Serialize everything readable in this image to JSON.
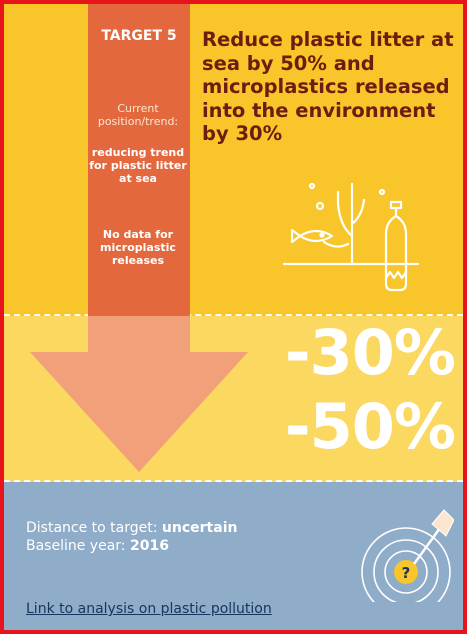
{
  "target": {
    "label": "TARGET 5",
    "headline": "Reduce plastic litter at sea by 50%  and microplastics released into the environment by 30%"
  },
  "current": {
    "label": "Current position/trend:",
    "trend_plastic": "reducing trend for plastic litter at sea",
    "trend_micro": "No data for microplastic releases"
  },
  "reductions": {
    "microplastics": "-30%",
    "plastic_litter": "-50%"
  },
  "distance": {
    "label": "Distance to target:",
    "value": "uncertain"
  },
  "baseline": {
    "label": "Baseline year:",
    "value": "2016"
  },
  "link": {
    "text": "Link to analysis on plastic pollution"
  },
  "colors": {
    "border": "#e8141b",
    "top_bg": "#f8c52a",
    "mid_bg": "#fbd860",
    "bottom_bg": "#8facc9",
    "arrow_column": "#e4683d",
    "arrow_head": "#f1a07a",
    "headline": "#6d1d0f"
  },
  "icons": [
    "sea-plastic-icon",
    "target-uncertain-icon"
  ]
}
